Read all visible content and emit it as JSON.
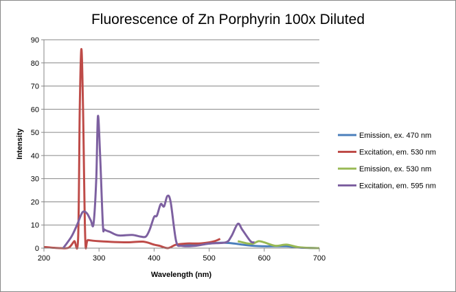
{
  "chart_data": {
    "type": "line",
    "title": "Fluorescence of Zn Porphyrin 100x Diluted",
    "xlabel": "Wavelength (nm)",
    "ylabel": "Intensity",
    "xlim": [
      200,
      700
    ],
    "ylim": [
      0,
      90
    ],
    "xticks": [
      200,
      300,
      400,
      500,
      600,
      700
    ],
    "yticks": [
      0,
      10,
      20,
      30,
      40,
      50,
      60,
      70,
      80,
      90
    ],
    "grid": "horizontal",
    "legend_position": "right",
    "series": [
      {
        "name": "Emission, ex. 470 nm",
        "color": "#4a7ebb",
        "x": [
          440,
          480,
          510,
          530,
          545,
          560,
          580,
          600,
          640,
          660,
          680,
          700
        ],
        "y": [
          1.5,
          1.5,
          2.2,
          2.3,
          2,
          1.5,
          1,
          0.8,
          0.8,
          0.3,
          0.1,
          0
        ]
      },
      {
        "name": "Excitation, em. 530 nm",
        "color": "#be4b48",
        "x": [
          200,
          215,
          230,
          245,
          255,
          262,
          265,
          268,
          271,
          275,
          280,
          300,
          350,
          380,
          400,
          410,
          425,
          440,
          460,
          480,
          500,
          510,
          520
        ],
        "y": [
          0.5,
          0.2,
          0,
          0.2,
          3,
          4,
          60,
          86,
          60,
          4,
          3.5,
          3,
          2.5,
          2.8,
          1.5,
          1,
          0,
          1.5,
          2,
          2,
          2.5,
          3,
          4
        ]
      },
      {
        "name": "Emission, ex. 530 nm",
        "color": "#98b954",
        "x": [
          552,
          570,
          580,
          590,
          600,
          620,
          640,
          660,
          680,
          700
        ],
        "y": [
          3,
          2,
          2,
          3,
          2.5,
          1,
          1.5,
          0.5,
          0.1,
          0
        ]
      },
      {
        "name": "Excitation, em. 595 nm",
        "color": "#7d60a0",
        "x": [
          235,
          250,
          260,
          270,
          278,
          285,
          290,
          295,
          298,
          302,
          307,
          310,
          320,
          335,
          360,
          375,
          385,
          392,
          400,
          405,
          412,
          418,
          424,
          430,
          440,
          450,
          475,
          500,
          530,
          540,
          552,
          560,
          575,
          582
        ],
        "y": [
          0,
          5,
          10,
          15.5,
          15,
          12,
          10.5,
          30,
          57,
          40,
          10,
          8,
          7,
          5.5,
          5.7,
          5,
          5,
          8,
          13.5,
          14,
          19,
          18,
          22.5,
          20,
          3,
          1,
          1,
          2,
          2.5,
          5,
          10.5,
          8,
          3,
          2.5
        ]
      }
    ]
  }
}
